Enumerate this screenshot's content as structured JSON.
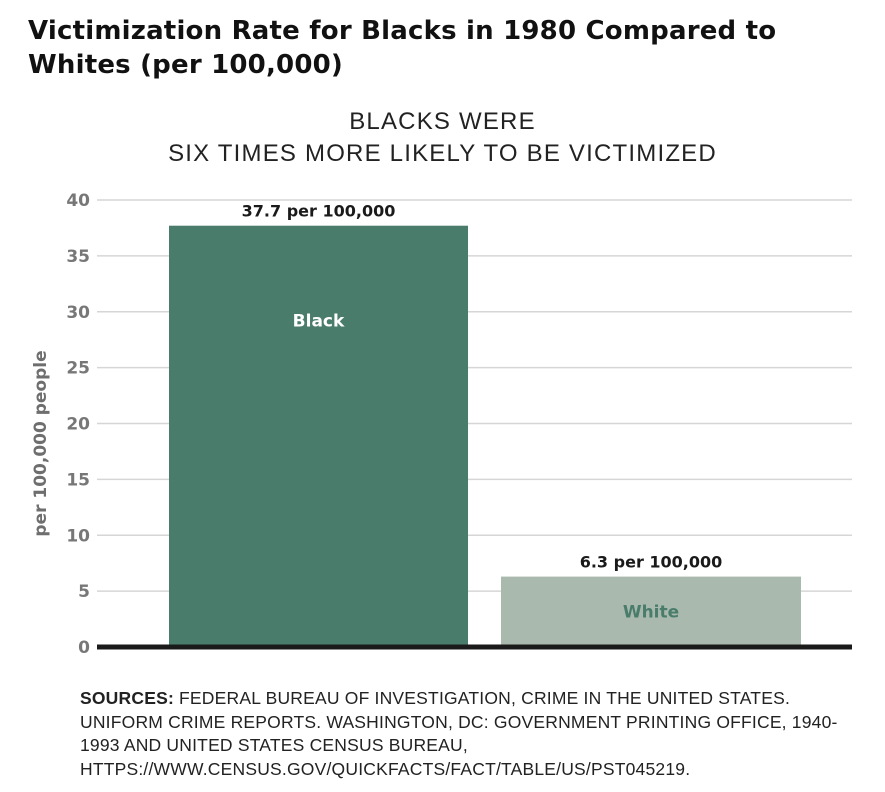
{
  "title": "Victimization Rate for Blacks in 1980 Compared to Whites (per 100,000)",
  "subtitle_lines": [
    "BLACKS WERE",
    "SIX TIMES MORE LIKELY TO BE VICTIMIZED"
  ],
  "sources": {
    "lead": "SOURCES:",
    "text": "FEDERAL BUREAU OF INVESTIGATION, CRIME IN THE UNITED STATES. UNIFORM CRIME REPORTS. WASHINGTON, DC: GOVERNMENT PRINTING OFFICE, 1940-1993 AND UNITED STATES CENSUS BUREAU, HTTPS://WWW.CENSUS.GOV/QUICKFACTS/FACT/TABLE/US/PST045219."
  },
  "colors": {
    "black_bar": "#4a7c6c",
    "white_bar": "#a9b9ae",
    "black_bar_label": "#ffffff",
    "white_bar_label": "#4a7c6c",
    "grid": "#d6d6d6",
    "baseline": "#1a1a1a"
  },
  "chart_data": {
    "type": "bar",
    "categories": [
      "Black",
      "White"
    ],
    "values": [
      37.7,
      6.3
    ],
    "data_labels": [
      "37.7 per 100,000",
      "6.3 per 100,000"
    ],
    "ylabel": "per 100,000 people",
    "xlabel": "",
    "ylim": [
      0,
      40
    ],
    "yticks": [
      0,
      5,
      10,
      15,
      20,
      25,
      30,
      35,
      40
    ],
    "grid": true,
    "legend": "none"
  }
}
